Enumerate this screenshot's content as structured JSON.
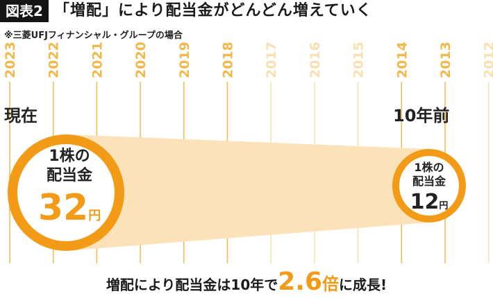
{
  "header": {
    "badge": "図表2",
    "title": "「増配」により配当金がどんどん増えていく",
    "subtitle": "※三菱UFJフィナンシャル・グループの場合"
  },
  "timeline": {
    "years": [
      "2023",
      "2022",
      "2021",
      "2020",
      "2019",
      "2018",
      "2017",
      "2016",
      "2015",
      "2014",
      "2013",
      "2012"
    ],
    "highlight_years": [
      "2023",
      "2022",
      "2021",
      "2020",
      "2019",
      "2018",
      "2014",
      "2013"
    ],
    "faded_years": [
      "2017",
      "2016",
      "2015",
      "2012"
    ]
  },
  "labels": {
    "now": "現在",
    "ago": "10年前"
  },
  "current": {
    "line1": "1株の",
    "line2": "配当金",
    "amount": "32",
    "unit": "円"
  },
  "past": {
    "line1": "1株の",
    "line2": "配当金",
    "amount": "12",
    "unit": "円"
  },
  "summary": {
    "pre": "増配により配当金は10年で",
    "multiplier": "2.6",
    "multiplier_unit": "倍",
    "post": "に成長!"
  },
  "colors": {
    "accent": "#f39a16",
    "fill": "#fbe2b8",
    "line": "#f3b84c",
    "line_faded": "#f8e0b0",
    "dark": "#141414"
  }
}
